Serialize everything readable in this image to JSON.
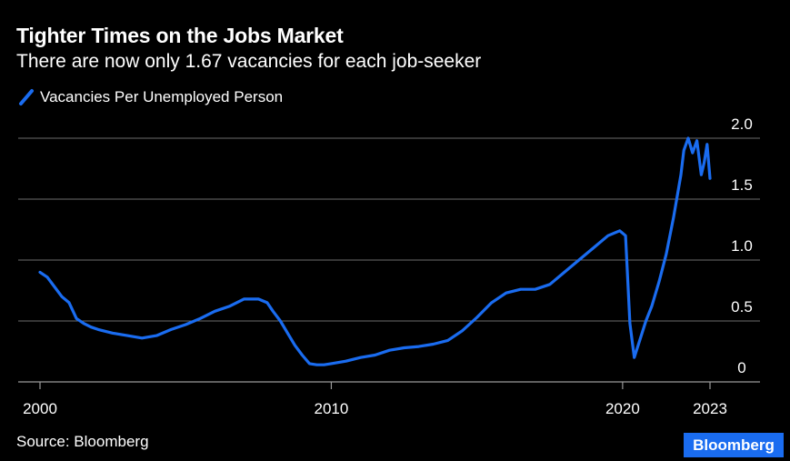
{
  "title": "Tighter Times on the Jobs Market",
  "subtitle": "There are now only 1.67 vacancies for each job-seeker",
  "source": "Source: Bloomberg",
  "brand": "Bloomberg",
  "colors": {
    "background": "#000000",
    "line": "#1a6cf0",
    "grid": "#6b6b6b",
    "brand": "#1a6cf0",
    "text": "#ffffff"
  },
  "chart_data": {
    "type": "line",
    "title": "Tighter Times on the Jobs Market",
    "subtitle": "There are now only 1.67 vacancies for each job-seeker",
    "xlabel": "",
    "ylabel": "",
    "xlim": [
      2000,
      2024.2
    ],
    "ylim": [
      0,
      2.0
    ],
    "y_axis_side": "right",
    "grid": "horizontal",
    "legend_position": "top-left",
    "x_ticks": [
      "2000",
      "2010",
      "2020",
      "2023"
    ],
    "x_tick_values": [
      2000,
      2010,
      2020,
      2023
    ],
    "y_ticks": [
      "0",
      "0.5",
      "1.0",
      "1.5",
      "2.0"
    ],
    "y_tick_values": [
      0,
      0.5,
      1.0,
      1.5,
      2.0
    ],
    "series": [
      {
        "name": "Vacancies Per Unemployed Person",
        "x": [
          2000.0,
          2000.25,
          2000.5,
          2000.75,
          2001.0,
          2001.25,
          2001.5,
          2001.75,
          2002.0,
          2002.5,
          2003.0,
          2003.5,
          2004.0,
          2004.5,
          2005.0,
          2005.5,
          2006.0,
          2006.5,
          2007.0,
          2007.5,
          2007.8,
          2008.0,
          2008.25,
          2008.5,
          2008.75,
          2009.0,
          2009.25,
          2009.5,
          2009.75,
          2010.0,
          2010.5,
          2011.0,
          2011.5,
          2012.0,
          2012.5,
          2013.0,
          2013.5,
          2014.0,
          2014.5,
          2015.0,
          2015.5,
          2016.0,
          2016.5,
          2017.0,
          2017.5,
          2018.0,
          2018.5,
          2019.0,
          2019.5,
          2019.9,
          2020.1,
          2020.25,
          2020.4,
          2020.6,
          2020.8,
          2021.0,
          2021.25,
          2021.5,
          2021.75,
          2022.0,
          2022.1,
          2022.25,
          2022.4,
          2022.55,
          2022.7,
          2022.8,
          2022.9,
          2023.0
        ],
        "y": [
          0.9,
          0.86,
          0.78,
          0.7,
          0.65,
          0.52,
          0.48,
          0.45,
          0.43,
          0.4,
          0.38,
          0.36,
          0.38,
          0.43,
          0.47,
          0.52,
          0.58,
          0.62,
          0.68,
          0.68,
          0.65,
          0.58,
          0.5,
          0.4,
          0.3,
          0.22,
          0.15,
          0.14,
          0.14,
          0.15,
          0.17,
          0.2,
          0.22,
          0.26,
          0.28,
          0.29,
          0.31,
          0.34,
          0.42,
          0.53,
          0.65,
          0.73,
          0.76,
          0.76,
          0.8,
          0.9,
          1.0,
          1.1,
          1.2,
          1.24,
          1.2,
          0.48,
          0.2,
          0.35,
          0.5,
          0.62,
          0.82,
          1.05,
          1.35,
          1.7,
          1.9,
          2.0,
          1.88,
          1.98,
          1.7,
          1.8,
          1.95,
          1.67
        ]
      }
    ]
  }
}
